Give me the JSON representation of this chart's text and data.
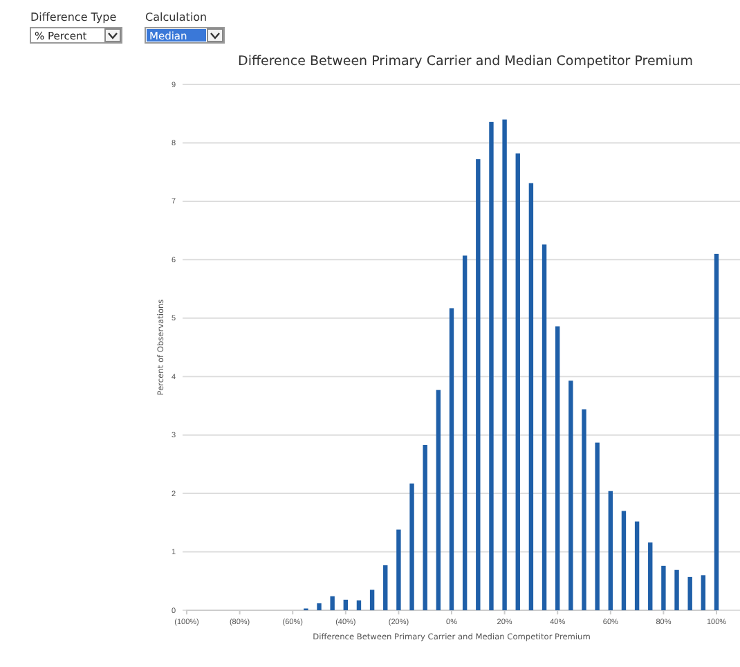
{
  "chart_data": {
    "type": "bar",
    "title": "Difference Between Primary Carrier and Median Competitor Premium",
    "xlabel": "Difference Between Primary Carrier and Median Competitor Premium",
    "ylabel": "Percent of Observations",
    "annotations": [
      "Difference Type",
      "% Percent",
      "Calculation",
      "Median"
    ],
    "x": [
      -55,
      -50,
      -45,
      -40,
      -35,
      -30,
      -25,
      -20,
      -15,
      -10,
      -5,
      0,
      5,
      10,
      15,
      20,
      25,
      30,
      35,
      40,
      45,
      50,
      55,
      60,
      65,
      70,
      75,
      80,
      85,
      90,
      95,
      100
    ],
    "values": [
      0.03,
      0.12,
      0.24,
      0.18,
      0.17,
      0.35,
      0.77,
      1.38,
      2.17,
      2.83,
      3.77,
      5.17,
      6.07,
      7.72,
      8.36,
      8.4,
      7.82,
      7.31,
      6.26,
      4.86,
      3.93,
      3.44,
      2.87,
      2.04,
      1.7,
      1.52,
      1.16,
      0.76,
      0.69,
      0.57,
      0.6,
      6.1
    ],
    "color": "#1f5fa8",
    "xlim": [
      -100,
      100
    ],
    "xticks": [
      {
        "value": -100,
        "label": "(100%)"
      },
      {
        "value": -80,
        "label": "(80%)"
      },
      {
        "value": -60,
        "label": "(60%)"
      },
      {
        "value": -40,
        "label": "(40%)"
      },
      {
        "value": -20,
        "label": "(20%)"
      },
      {
        "value": 0,
        "label": "0%"
      },
      {
        "value": 20,
        "label": "20%"
      },
      {
        "value": 40,
        "label": "40%"
      },
      {
        "value": 60,
        "label": "60%"
      },
      {
        "value": 80,
        "label": "80%"
      },
      {
        "value": 100,
        "label": "100%"
      }
    ],
    "ylim": [
      0,
      9
    ],
    "yticks": [
      0,
      1,
      2,
      3,
      4,
      5,
      6,
      7,
      8,
      9
    ],
    "grid": "y"
  }
}
